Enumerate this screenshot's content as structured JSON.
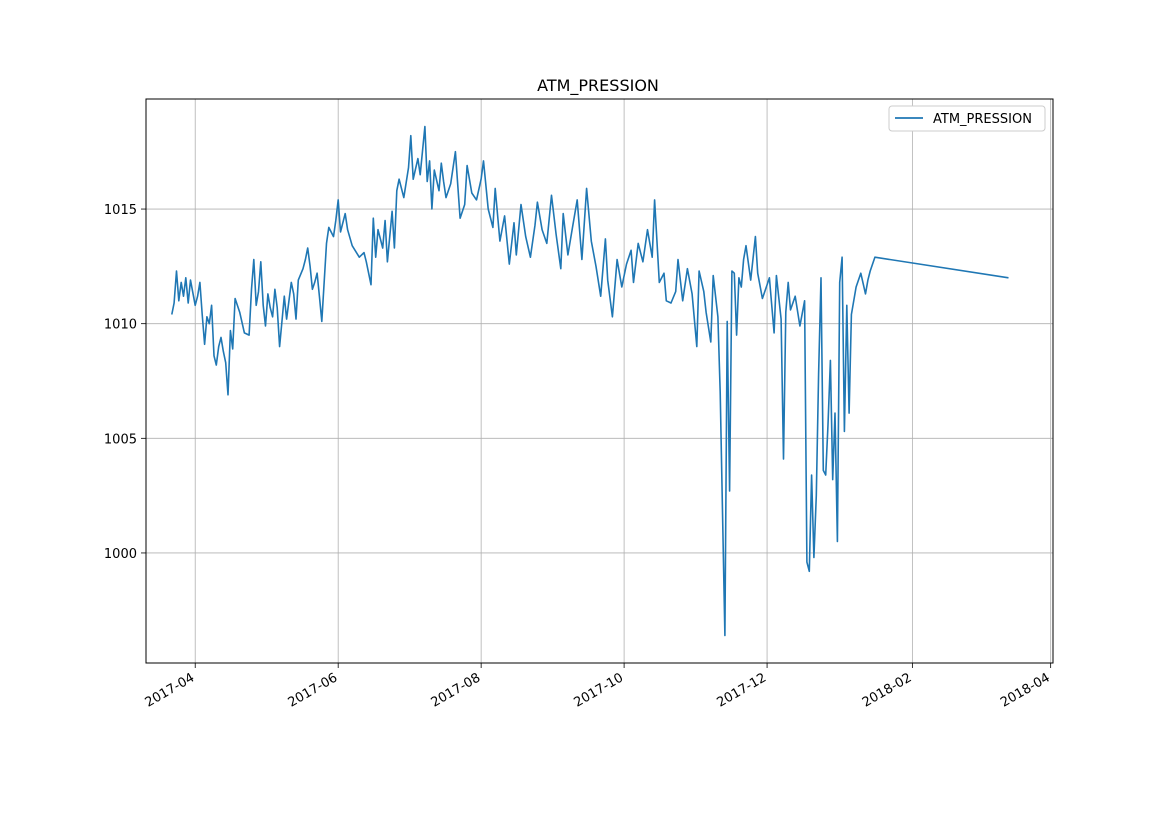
{
  "chart_data": {
    "type": "line",
    "title": "ATM_PRESSION",
    "xlabel": "",
    "ylabel": "",
    "x_type": "date",
    "xlim": [
      "2017-03-11",
      "2018-04-02"
    ],
    "ylim": [
      995.2,
      1019.8
    ],
    "x_ticks": [
      "2017-04-01",
      "2017-06-01",
      "2017-08-01",
      "2017-10-01",
      "2017-12-01",
      "2018-02-01",
      "2018-04-01"
    ],
    "x_tick_labels": [
      "2017-04",
      "2017-06",
      "2017-08",
      "2017-10",
      "2017-12",
      "2018-02",
      "2018-04"
    ],
    "y_ticks": [
      1000,
      1005,
      1010,
      1015
    ],
    "y_tick_labels": [
      "1000",
      "1005",
      "1010",
      "1015"
    ],
    "grid": true,
    "legend_position": "top-right",
    "series": [
      {
        "name": "ATM_PRESSION",
        "color": "#1f77b4",
        "x": [
          "2017-03-22",
          "2017-03-23",
          "2017-03-24",
          "2017-03-25",
          "2017-03-26",
          "2017-03-27",
          "2017-03-28",
          "2017-03-29",
          "2017-03-30",
          "2017-04-01",
          "2017-04-02",
          "2017-04-03",
          "2017-04-04",
          "2017-04-05",
          "2017-04-06",
          "2017-04-07",
          "2017-04-08",
          "2017-04-09",
          "2017-04-10",
          "2017-04-11",
          "2017-04-12",
          "2017-04-13",
          "2017-04-14",
          "2017-04-15",
          "2017-04-16",
          "2017-04-17",
          "2017-04-18",
          "2017-04-20",
          "2017-04-22",
          "2017-04-24",
          "2017-04-25",
          "2017-04-26",
          "2017-04-27",
          "2017-04-28",
          "2017-04-29",
          "2017-04-30",
          "2017-05-01",
          "2017-05-02",
          "2017-05-03",
          "2017-05-04",
          "2017-05-05",
          "2017-05-06",
          "2017-05-07",
          "2017-05-09",
          "2017-05-10",
          "2017-05-12",
          "2017-05-13",
          "2017-05-14",
          "2017-05-15",
          "2017-05-17",
          "2017-05-18",
          "2017-05-19",
          "2017-05-20",
          "2017-05-21",
          "2017-05-22",
          "2017-05-23",
          "2017-05-24",
          "2017-05-25",
          "2017-05-27",
          "2017-05-28",
          "2017-05-30",
          "2017-05-31",
          "2017-06-01",
          "2017-06-02",
          "2017-06-04",
          "2017-06-05",
          "2017-06-07",
          "2017-06-10",
          "2017-06-12",
          "2017-06-13",
          "2017-06-15",
          "2017-06-16",
          "2017-06-17",
          "2017-06-18",
          "2017-06-20",
          "2017-06-21",
          "2017-06-22",
          "2017-06-24",
          "2017-06-25",
          "2017-06-26",
          "2017-06-27",
          "2017-06-29",
          "2017-07-01",
          "2017-07-02",
          "2017-07-03",
          "2017-07-05",
          "2017-07-06",
          "2017-07-08",
          "2017-07-09",
          "2017-07-10",
          "2017-07-11",
          "2017-07-12",
          "2017-07-14",
          "2017-07-15",
          "2017-07-16",
          "2017-07-17",
          "2017-07-19",
          "2017-07-21",
          "2017-07-23",
          "2017-07-25",
          "2017-07-26",
          "2017-07-28",
          "2017-07-30",
          "2017-08-01",
          "2017-08-02",
          "2017-08-04",
          "2017-08-06",
          "2017-08-07",
          "2017-08-09",
          "2017-08-11",
          "2017-08-13",
          "2017-08-15",
          "2017-08-16",
          "2017-08-18",
          "2017-08-20",
          "2017-08-22",
          "2017-08-24",
          "2017-08-25",
          "2017-08-27",
          "2017-08-29",
          "2017-08-31",
          "2017-09-02",
          "2017-09-04",
          "2017-09-05",
          "2017-09-07",
          "2017-09-09",
          "2017-09-11",
          "2017-09-13",
          "2017-09-15",
          "2017-09-17",
          "2017-09-19",
          "2017-09-21",
          "2017-09-23",
          "2017-09-24",
          "2017-09-26",
          "2017-09-28",
          "2017-09-30",
          "2017-10-02",
          "2017-10-04",
          "2017-10-05",
          "2017-10-07",
          "2017-10-09",
          "2017-10-11",
          "2017-10-13",
          "2017-10-14",
          "2017-10-16",
          "2017-10-18",
          "2017-10-19",
          "2017-10-21",
          "2017-10-23",
          "2017-10-24",
          "2017-10-26",
          "2017-10-28",
          "2017-10-30",
          "2017-11-01",
          "2017-11-02",
          "2017-11-04",
          "2017-11-05",
          "2017-11-07",
          "2017-11-08",
          "2017-11-10",
          "2017-11-11",
          "2017-11-13",
          "2017-11-14",
          "2017-11-15",
          "2017-11-16",
          "2017-11-17",
          "2017-11-18",
          "2017-11-19",
          "2017-11-20",
          "2017-11-21",
          "2017-11-22",
          "2017-11-24",
          "2017-11-26",
          "2017-11-27",
          "2017-11-29",
          "2017-12-01",
          "2017-12-02",
          "2017-12-04",
          "2017-12-05",
          "2017-12-07",
          "2017-12-08",
          "2017-12-09",
          "2017-12-10",
          "2017-12-11",
          "2017-12-13",
          "2017-12-15",
          "2017-12-17",
          "2017-12-18",
          "2017-12-19",
          "2017-12-20",
          "2017-12-21",
          "2017-12-22",
          "2017-12-23",
          "2017-12-24",
          "2017-12-25",
          "2017-12-26",
          "2017-12-27",
          "2017-12-28",
          "2017-12-29",
          "2017-12-30",
          "2017-12-31",
          "2018-01-01",
          "2018-01-02",
          "2018-01-03",
          "2018-01-04",
          "2018-01-05",
          "2018-01-06",
          "2018-01-08",
          "2018-01-10",
          "2018-01-12",
          "2018-01-13",
          "2018-01-14",
          "2018-01-16",
          "2018-03-14"
        ],
        "values": [
          1010.4,
          1010.9,
          1012.3,
          1011.0,
          1011.8,
          1011.2,
          1012.0,
          1010.9,
          1011.9,
          1010.8,
          1011.2,
          1011.8,
          1010.4,
          1009.1,
          1010.3,
          1010.0,
          1010.8,
          1008.6,
          1008.2,
          1009.0,
          1009.4,
          1008.8,
          1008.3,
          1006.9,
          1009.7,
          1008.9,
          1011.1,
          1010.5,
          1009.6,
          1009.5,
          1011.5,
          1012.8,
          1010.8,
          1011.4,
          1012.7,
          1010.8,
          1009.9,
          1011.3,
          1010.7,
          1010.3,
          1011.5,
          1010.7,
          1009.0,
          1011.2,
          1010.2,
          1011.8,
          1011.3,
          1010.2,
          1011.9,
          1012.4,
          1012.8,
          1013.3,
          1012.5,
          1011.5,
          1011.8,
          1012.2,
          1011.2,
          1010.1,
          1013.5,
          1014.2,
          1013.8,
          1014.5,
          1015.4,
          1014.0,
          1014.8,
          1014.1,
          1013.4,
          1012.9,
          1013.1,
          1012.7,
          1011.7,
          1014.6,
          1012.9,
          1014.1,
          1013.3,
          1014.5,
          1012.7,
          1014.9,
          1013.3,
          1015.8,
          1016.3,
          1015.5,
          1016.8,
          1018.2,
          1016.3,
          1017.2,
          1016.5,
          1018.6,
          1016.2,
          1017.1,
          1015.0,
          1016.7,
          1015.8,
          1017.0,
          1016.2,
          1015.5,
          1016.1,
          1017.5,
          1014.6,
          1015.2,
          1016.9,
          1015.7,
          1015.4,
          1016.3,
          1017.1,
          1015.0,
          1014.2,
          1015.9,
          1013.6,
          1014.7,
          1012.6,
          1014.4,
          1013.0,
          1015.2,
          1013.8,
          1012.9,
          1014.3,
          1015.3,
          1014.1,
          1013.5,
          1015.6,
          1013.9,
          1012.4,
          1014.8,
          1013.0,
          1014.2,
          1015.4,
          1012.8,
          1015.9,
          1013.6,
          1012.5,
          1011.2,
          1013.7,
          1011.9,
          1010.3,
          1012.8,
          1011.6,
          1012.6,
          1013.2,
          1011.8,
          1013.5,
          1012.7,
          1014.1,
          1012.9,
          1015.4,
          1011.8,
          1012.2,
          1011.0,
          1010.9,
          1011.4,
          1012.8,
          1011.0,
          1012.4,
          1011.3,
          1009.0,
          1012.3,
          1011.4,
          1010.5,
          1009.2,
          1012.1,
          1010.3,
          1007.0,
          996.4,
          1010.1,
          1002.7,
          1012.3,
          1012.2,
          1009.5,
          1012.0,
          1011.6,
          1012.8,
          1013.4,
          1011.9,
          1013.8,
          1012.2,
          1011.1,
          1011.7,
          1012.0,
          1009.6,
          1012.1,
          1010.2,
          1004.1,
          1010.5,
          1011.8,
          1010.6,
          1011.2,
          1009.9,
          1011.0,
          999.6,
          999.2,
          1003.4,
          999.8,
          1002.5,
          1007.8,
          1012.0,
          1003.6,
          1003.4,
          1005.6,
          1008.4,
          1003.2,
          1006.1,
          1000.5,
          1011.8,
          1012.9,
          1005.3,
          1010.8,
          1006.1,
          1010.4,
          1011.6,
          1012.2,
          1011.3,
          1011.9,
          1012.3,
          1012.9,
          1012.0
        ]
      }
    ]
  }
}
